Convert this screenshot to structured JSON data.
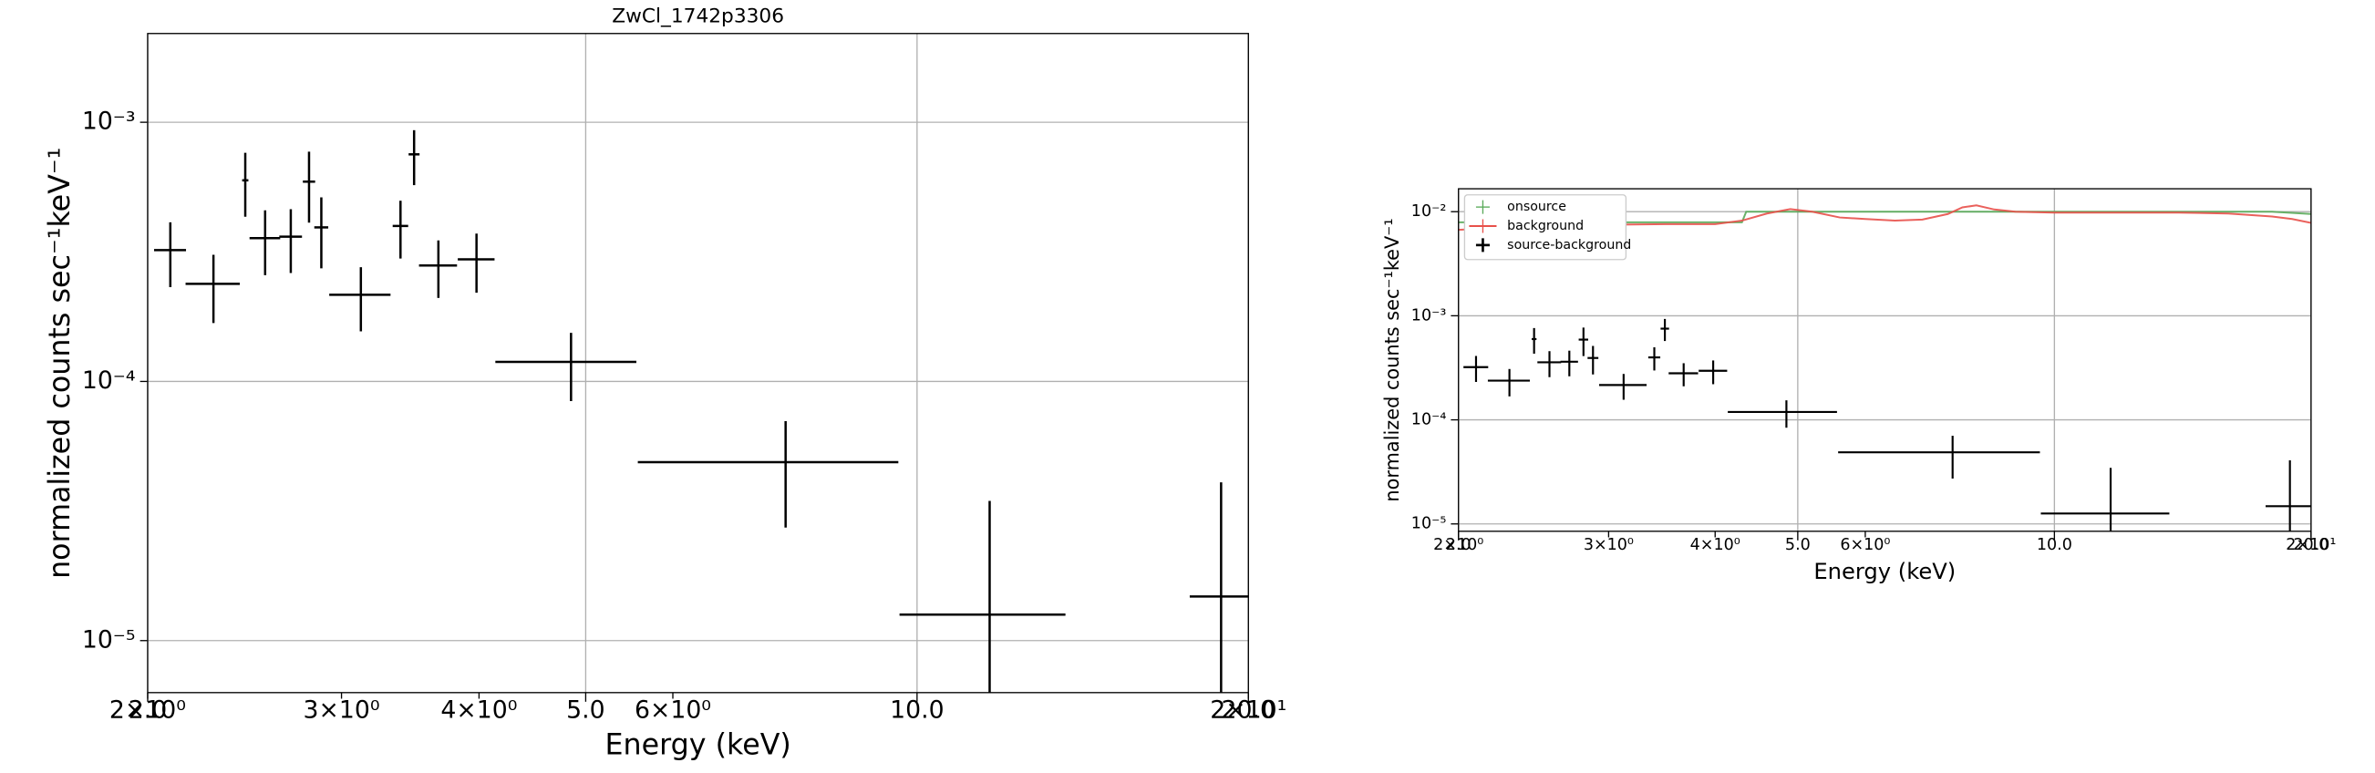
{
  "chart_data": [
    {
      "type": "errorbar",
      "title": "ZwCl_1742p3306",
      "xlabel": "Energy (keV)",
      "ylabel": "normalized counts sec⁻¹keV⁻¹",
      "xscale": "log",
      "yscale": "log",
      "grid": true,
      "xlim": [
        2.0,
        20.0
      ],
      "ylim": [
        6.3e-06,
        0.0022
      ],
      "xticks": [
        {
          "value": 2,
          "label": "2×10⁰"
        },
        {
          "value": 3,
          "label": "3×10⁰"
        },
        {
          "value": 4,
          "label": "4×10⁰"
        },
        {
          "value": 6,
          "label": "6×10⁰"
        },
        {
          "value": 20,
          "label": "2×10¹"
        }
      ],
      "xticks_secondary": [
        {
          "value": 2,
          "label": "2.0"
        },
        {
          "value": 5,
          "label": "5.0"
        },
        {
          "value": 10,
          "label": "10.0"
        },
        {
          "value": 20,
          "label": "20.0"
        }
      ],
      "yticks": [
        {
          "value": 1e-05,
          "label": "10⁻⁵"
        },
        {
          "value": 0.0001,
          "label": "10⁻⁴"
        },
        {
          "value": 0.001,
          "label": "10⁻³"
        }
      ],
      "series": [
        {
          "color": "#000000",
          "x": [
            2.097,
            2.295,
            2.453,
            2.557,
            2.698,
            2.803,
            2.876,
            3.124,
            3.394,
            3.492,
            3.674,
            3.979,
            4.849,
            7.596,
            11.64,
            18.89
          ],
          "xerr": [
            0.07,
            0.13,
            0.016,
            0.082,
            0.064,
            0.036,
            0.042,
            0.2,
            0.055,
            0.04,
            0.146,
            0.153,
            0.71,
            2.02,
            2.0,
            1.2
          ],
          "values": [
            0.000321,
            0.000238,
            0.000597,
            0.000357,
            0.000362,
            0.00059,
            0.000393,
            0.000216,
            0.000398,
            0.000752,
            0.00028,
            0.000296,
            0.000119,
            4.88e-05,
            1.26e-05,
            1.48e-05
          ],
          "yerr": [
            9e-05,
            7e-05,
            0.000165,
            0.0001,
            0.0001,
            0.00018,
            0.00012,
            6e-05,
            0.0001,
            0.00018,
            7e-05,
            7.6e-05,
            3.5e-05,
            2.15e-05,
            2.2e-05,
            2.6e-05
          ]
        }
      ]
    },
    {
      "type": "errorbar",
      "xlabel": "Energy (keV)",
      "ylabel": "normalized counts sec⁻¹keV⁻¹",
      "xscale": "log",
      "yscale": "log",
      "grid": true,
      "legend": "upper left",
      "xlim": [
        2.0,
        20.0
      ],
      "ylim": [
        8.5e-06,
        0.0166
      ],
      "xticks": [
        {
          "value": 2,
          "label": "2×10⁰"
        },
        {
          "value": 3,
          "label": "3×10⁰"
        },
        {
          "value": 4,
          "label": "4×10⁰"
        },
        {
          "value": 6,
          "label": "6×10⁰"
        },
        {
          "value": 20,
          "label": "2×10¹"
        }
      ],
      "xticks_secondary": [
        {
          "value": 2,
          "label": "2.0"
        },
        {
          "value": 5,
          "label": "5.0"
        },
        {
          "value": 10,
          "label": "10.0"
        },
        {
          "value": 20,
          "label": "20.0"
        }
      ],
      "yticks": [
        {
          "value": 1e-05,
          "label": "10⁻⁵"
        },
        {
          "value": 0.0001,
          "label": "10⁻⁴"
        },
        {
          "value": 0.001,
          "label": "10⁻³"
        },
        {
          "value": 0.01,
          "label": "10⁻²"
        }
      ],
      "series": [
        {
          "name": "onsource",
          "color": "#5aaa5a",
          "x": [
            2.0,
            3.0,
            4.0,
            4.3,
            4.35,
            6.0,
            8.0,
            10.0,
            14.0,
            18.0,
            20.0
          ],
          "values": [
            0.0079,
            0.0079,
            0.0079,
            0.0079,
            0.01,
            0.01,
            0.01,
            0.01,
            0.01,
            0.01,
            0.0095
          ]
        },
        {
          "name": "background",
          "color": "#e8504a",
          "x": [
            2.0,
            2.5,
            3.0,
            3.5,
            4.0,
            4.3,
            4.6,
            4.9,
            5.2,
            5.6,
            6.0,
            6.5,
            7.0,
            7.5,
            7.8,
            8.1,
            8.5,
            9.0,
            10,
            12,
            14,
            16,
            18,
            19,
            20
          ],
          "values": [
            0.0067,
            0.0073,
            0.0075,
            0.0076,
            0.0076,
            0.0082,
            0.0096,
            0.0106,
            0.01,
            0.0088,
            0.0085,
            0.0082,
            0.0084,
            0.0095,
            0.011,
            0.0115,
            0.0105,
            0.01,
            0.0098,
            0.0098,
            0.0098,
            0.0096,
            0.009,
            0.0085,
            0.0078
          ]
        },
        {
          "name": "source-background",
          "color": "#000000",
          "x": [
            2.097,
            2.295,
            2.453,
            2.557,
            2.698,
            2.803,
            2.876,
            3.124,
            3.394,
            3.492,
            3.674,
            3.979,
            4.849,
            7.596,
            11.64,
            18.89
          ],
          "xerr": [
            0.07,
            0.13,
            0.016,
            0.082,
            0.064,
            0.036,
            0.042,
            0.2,
            0.055,
            0.04,
            0.146,
            0.153,
            0.71,
            2.02,
            2.0,
            1.2
          ],
          "values": [
            0.000321,
            0.000238,
            0.000597,
            0.000357,
            0.000362,
            0.00059,
            0.000393,
            0.000216,
            0.000398,
            0.000752,
            0.00028,
            0.000296,
            0.000119,
            4.88e-05,
            1.26e-05,
            1.48e-05
          ],
          "yerr": [
            9e-05,
            7e-05,
            0.000165,
            0.0001,
            0.0001,
            0.00018,
            0.00012,
            6e-05,
            0.0001,
            0.00018,
            7e-05,
            7.6e-05,
            3.5e-05,
            2.15e-05,
            2.2e-05,
            2.6e-05
          ]
        }
      ]
    }
  ]
}
